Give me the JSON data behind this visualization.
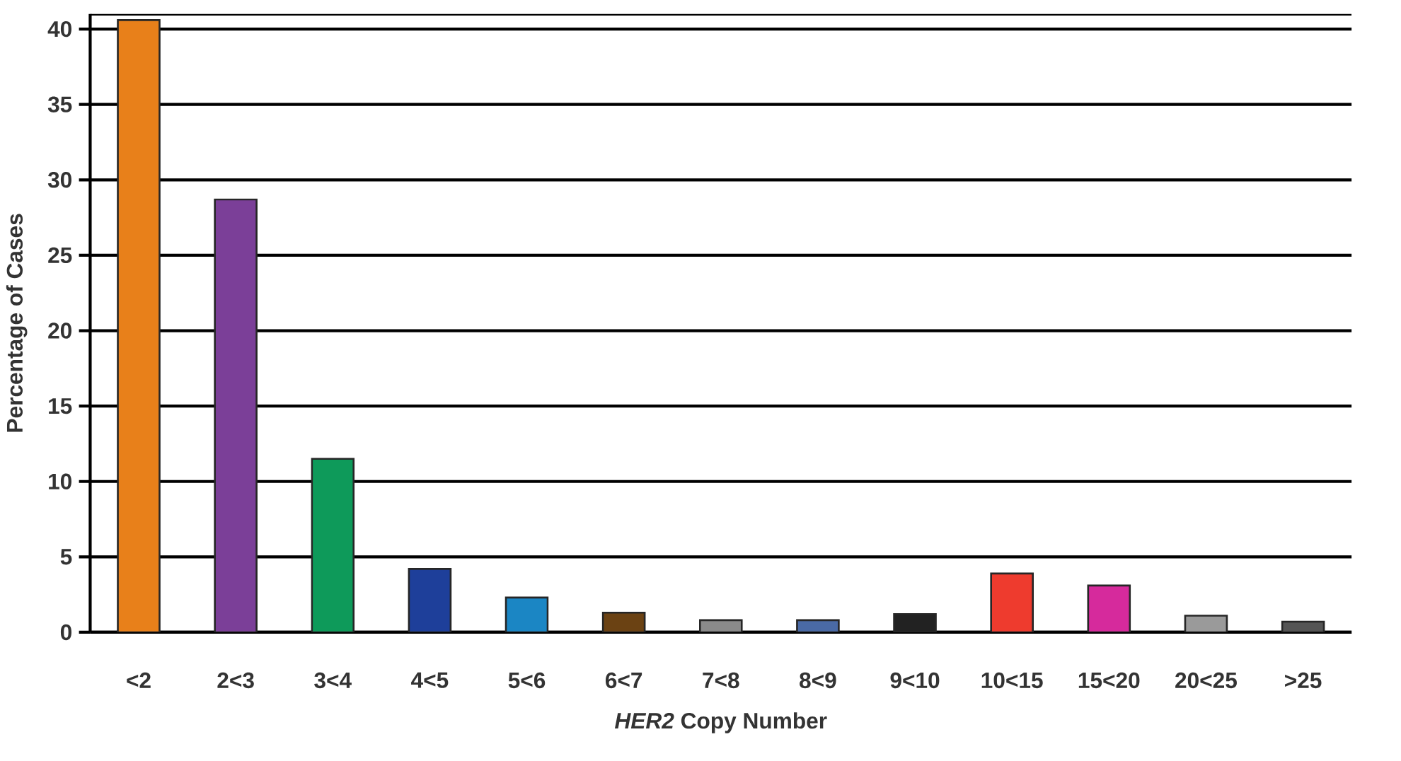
{
  "chart_data": {
    "type": "bar",
    "xlabel": "*HER2* Copy Number",
    "ylabel": "Percentage of Cases",
    "categories": [
      "<2",
      "2<3",
      "3<4",
      "4<5",
      "5<6",
      "6<7",
      "7<8",
      "8<9",
      "9<10",
      "10<15",
      "15<20",
      "20<25",
      ">25"
    ],
    "values": [
      40.6,
      28.7,
      11.5,
      4.2,
      2.3,
      1.3,
      0.8,
      0.8,
      1.2,
      3.9,
      3.1,
      1.1,
      0.7
    ],
    "colors": [
      "#e8801a",
      "#7b3f98",
      "#0e9a5a",
      "#1e3f9a",
      "#1b86c4",
      "#6b4213",
      "#8a8a8a",
      "#4a6aa5",
      "#222222",
      "#ee3b2e",
      "#d62a9c",
      "#9a9a9a",
      "#555555"
    ],
    "ylim": [
      0,
      41
    ],
    "yticks": [
      0,
      5,
      10,
      15,
      20,
      25,
      30,
      35,
      40
    ],
    "grid": "y"
  }
}
